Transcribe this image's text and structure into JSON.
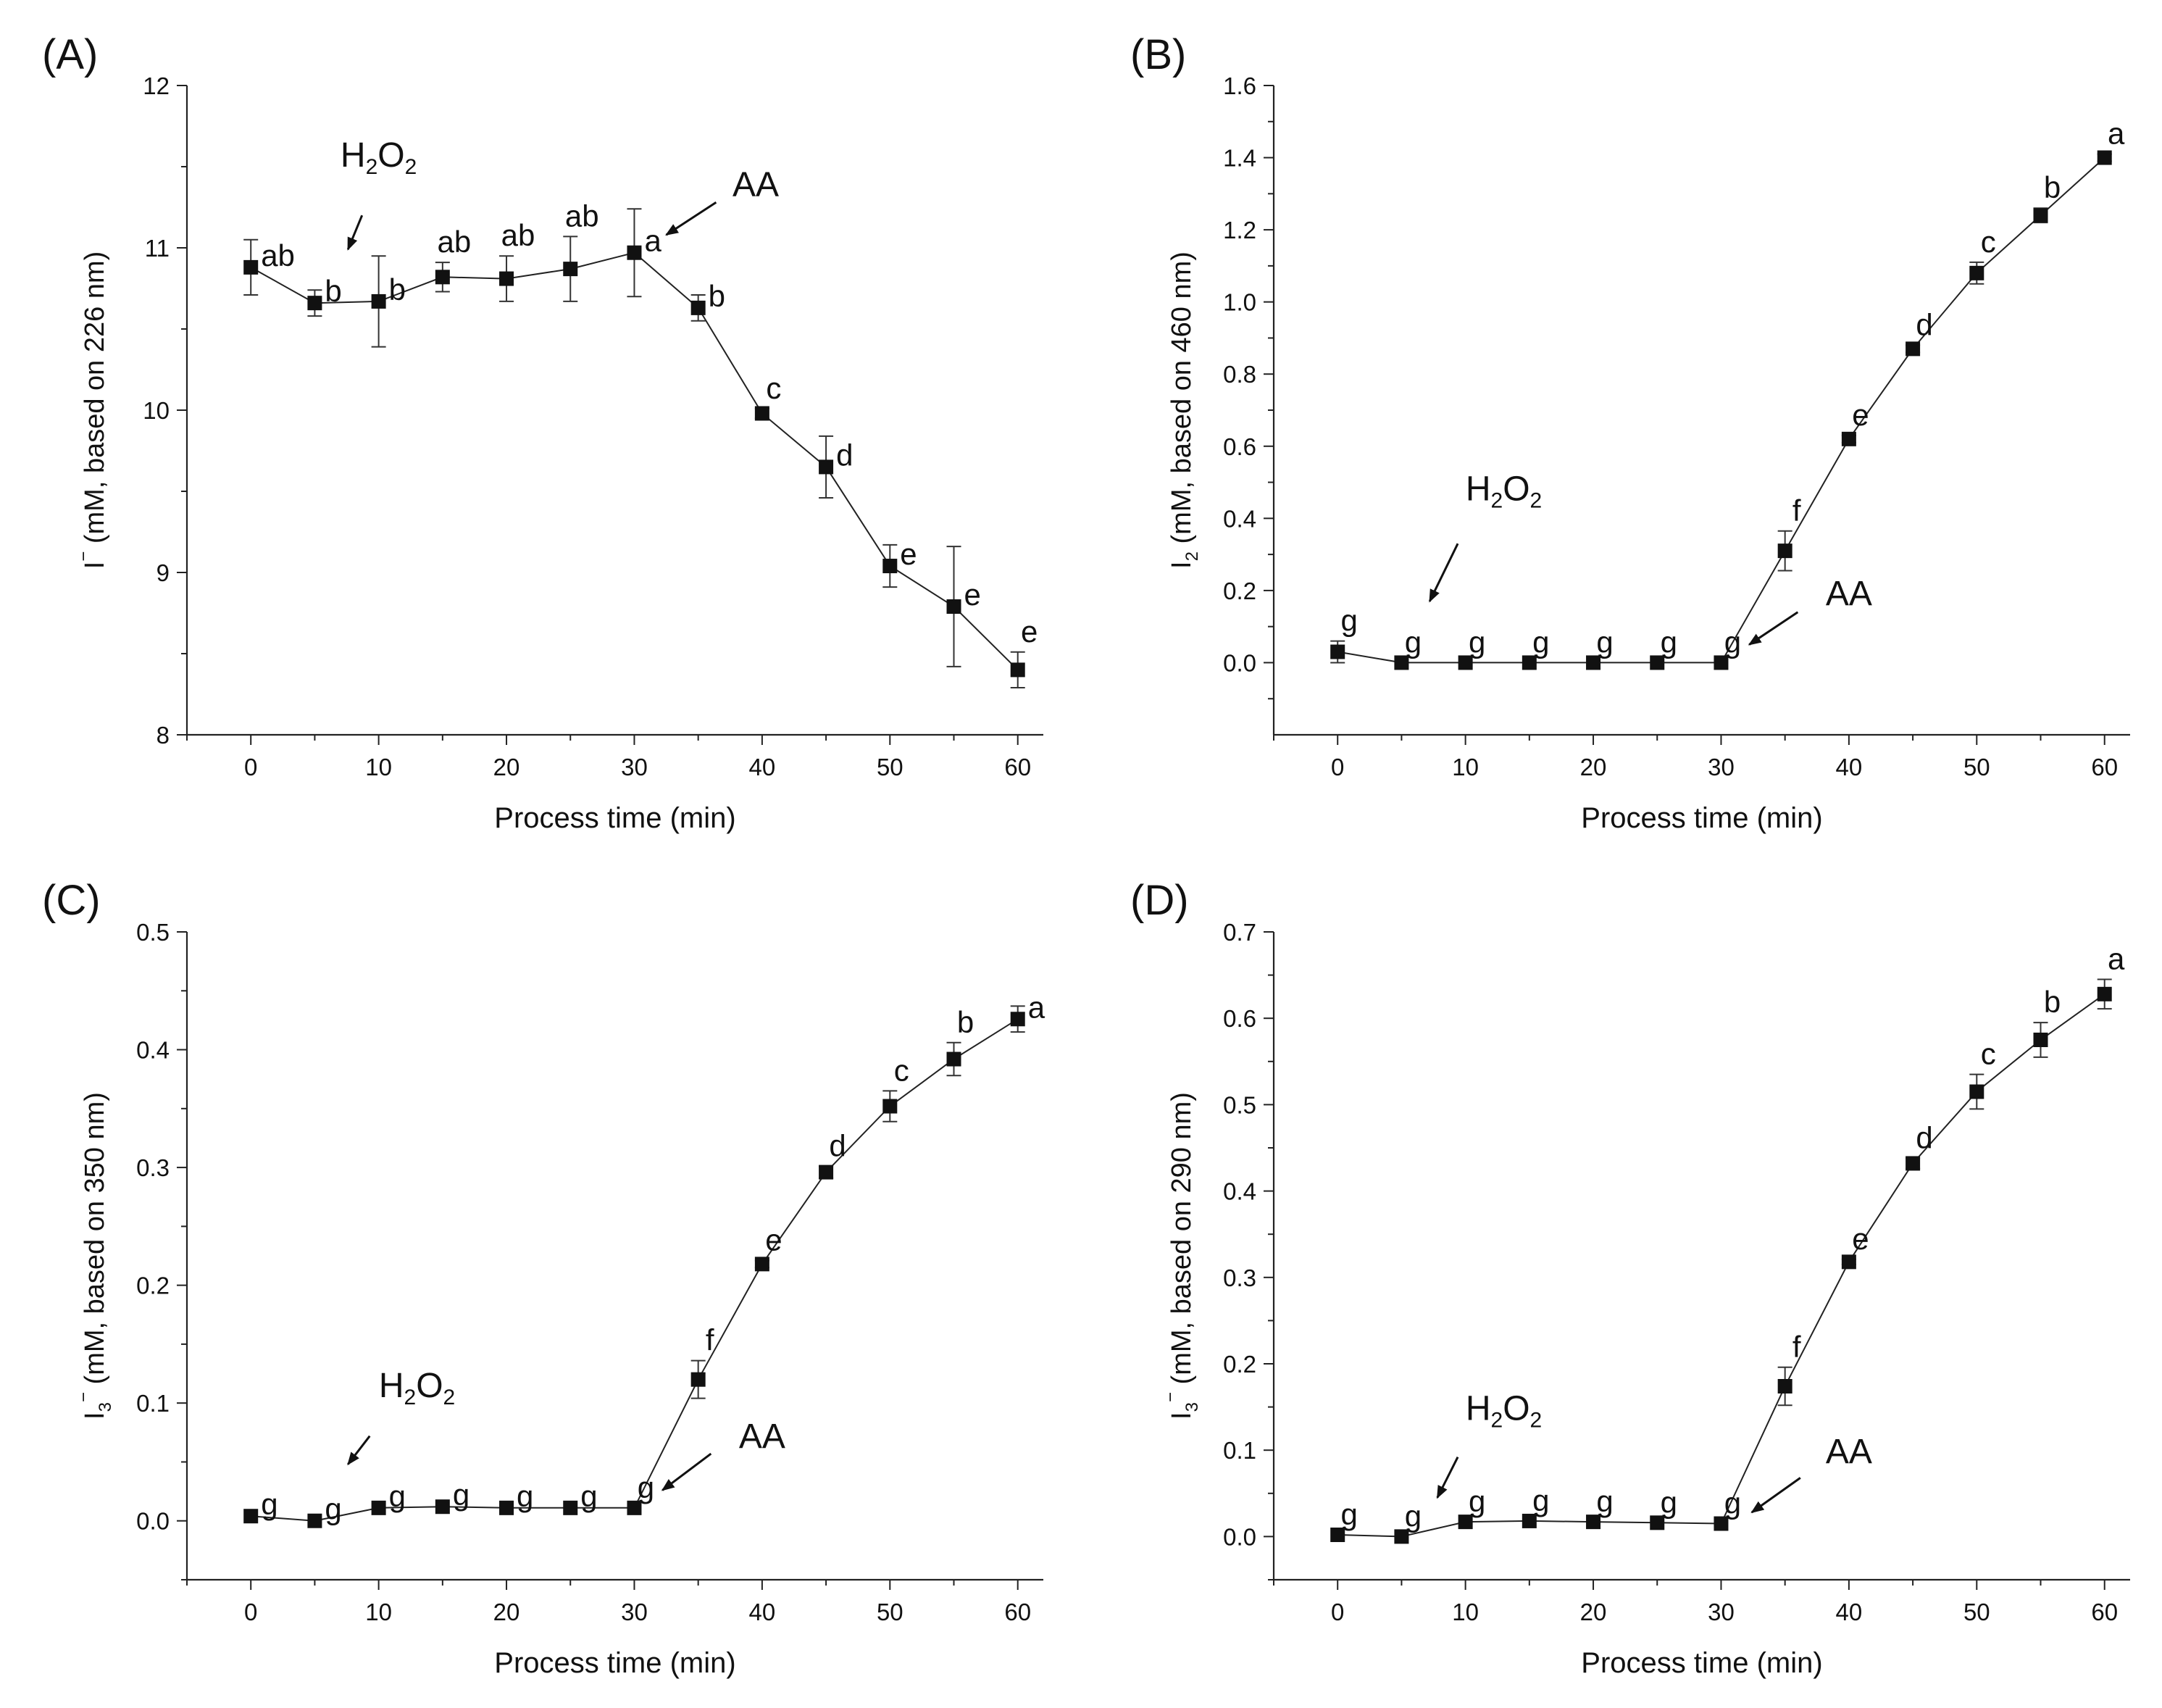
{
  "figure": {
    "panels": [
      "(A)",
      "(B)",
      "(C)",
      "(D)"
    ]
  },
  "chart_data": [
    {
      "type": "line",
      "panel": "(A)",
      "title": "",
      "xlabel": "Process time (min)",
      "ylabel": "I⁻ (mM, based on 226 nm)",
      "ylabel_main": "I",
      "ylabel_sup": "−",
      "ylabel_sub": "",
      "ylabel_rest": " (mM, based on 226 nm)",
      "xlim": [
        -5,
        62
      ],
      "ylim": [
        8,
        12
      ],
      "xticks": [
        0,
        10,
        20,
        30,
        40,
        50,
        60
      ],
      "yticks": [
        8,
        9,
        10,
        11,
        12
      ],
      "ytick_decimals": 0,
      "x": [
        0,
        5,
        10,
        15,
        20,
        25,
        30,
        35,
        40,
        45,
        50,
        55,
        60
      ],
      "y": [
        10.88,
        10.66,
        10.67,
        10.82,
        10.81,
        10.87,
        10.97,
        10.63,
        9.98,
        9.65,
        9.04,
        8.79,
        8.4
      ],
      "err": [
        0.17,
        0.08,
        0.28,
        0.09,
        0.14,
        0.2,
        0.27,
        0.08,
        0.03,
        0.19,
        0.13,
        0.37,
        0.11
      ],
      "labels": [
        "ab",
        "b",
        "b",
        "ab",
        "ab",
        "ab",
        "a",
        "b",
        "c",
        "d",
        "e",
        "e",
        "e"
      ],
      "label_pos": [
        "right",
        "right",
        "right",
        "above",
        "above",
        "above",
        "right",
        "right",
        "above",
        "right",
        "right",
        "right",
        "above"
      ],
      "annotations": [
        {
          "main": "H",
          "sub": "2",
          "main2": "O",
          "sub2": "2",
          "text_x": 10,
          "text_y": 11.5,
          "arrow_from": [
            8.7,
            11.2
          ],
          "arrow_to": [
            7.6,
            10.99
          ]
        },
        {
          "main": "AA",
          "sub": "",
          "main2": "",
          "sub2": "",
          "text_x": 39.5,
          "text_y": 11.32,
          "arrow_from": [
            36.4,
            11.28
          ],
          "arrow_to": [
            32.5,
            11.08
          ]
        }
      ]
    },
    {
      "type": "line",
      "panel": "(B)",
      "title": "",
      "xlabel": "Process time (min)",
      "ylabel": "I₂ (mM, based on 460 nm)",
      "ylabel_main": "I",
      "ylabel_sup": "",
      "ylabel_sub": "2",
      "ylabel_rest": " (mM, based on 460 nm)",
      "xlim": [
        -5,
        62
      ],
      "ylim": [
        -0.2,
        1.6
      ],
      "xticks": [
        0,
        10,
        20,
        30,
        40,
        50,
        60
      ],
      "yticks": [
        0.0,
        0.2,
        0.4,
        0.6,
        0.8,
        1.0,
        1.2,
        1.4,
        1.6
      ],
      "ytick_decimals": 1,
      "x": [
        0,
        5,
        10,
        15,
        20,
        25,
        30,
        35,
        40,
        45,
        50,
        55,
        60
      ],
      "y": [
        0.03,
        0.0,
        0.0,
        0.0,
        0.0,
        0.0,
        0.0,
        0.31,
        0.62,
        0.87,
        1.08,
        1.24,
        1.4
      ],
      "err": [
        0.03,
        0.0,
        0.0,
        0.0,
        0.0,
        0.0,
        0.0,
        0.055,
        0.01,
        0.01,
        0.03,
        0.02,
        0.01
      ],
      "labels": [
        "g",
        "g",
        "g",
        "g",
        "g",
        "g",
        "g",
        "f",
        "e",
        "d",
        "c",
        "b",
        "a"
      ],
      "label_pos": [
        "above",
        "above",
        "above",
        "above",
        "above",
        "above",
        "above",
        "above",
        "above",
        "above",
        "above",
        "above",
        "above"
      ],
      "annotations": [
        {
          "main": "H",
          "sub": "2",
          "main2": "O",
          "sub2": "2",
          "text_x": 13,
          "text_y": 0.45,
          "arrow_from": [
            9.4,
            0.33
          ],
          "arrow_to": [
            7.2,
            0.17
          ]
        },
        {
          "main": "AA",
          "sub": "",
          "main2": "",
          "sub2": "",
          "text_x": 40,
          "text_y": 0.16,
          "arrow_from": [
            36,
            0.14
          ],
          "arrow_to": [
            32.2,
            0.05
          ]
        }
      ]
    },
    {
      "type": "line",
      "panel": "(C)",
      "title": "",
      "xlabel": "Process time (min)",
      "ylabel": "I₃⁻ (mM, based on 350 nm)",
      "ylabel_main": "I",
      "ylabel_sup": "−",
      "ylabel_sub": "3",
      "ylabel_rest": " (mM, based on 350 nm)",
      "xlim": [
        -5,
        62
      ],
      "ylim": [
        -0.05,
        0.5
      ],
      "xticks": [
        0,
        10,
        20,
        30,
        40,
        50,
        60
      ],
      "yticks": [
        0.0,
        0.1,
        0.2,
        0.3,
        0.4,
        0.5
      ],
      "ytick_decimals": 1,
      "x": [
        0,
        5,
        10,
        15,
        20,
        25,
        30,
        35,
        40,
        45,
        50,
        55,
        60
      ],
      "y": [
        0.004,
        0.0,
        0.011,
        0.012,
        0.011,
        0.011,
        0.011,
        0.12,
        0.218,
        0.296,
        0.352,
        0.392,
        0.426
      ],
      "err": [
        0.0,
        0.0,
        0.0,
        0.0,
        0.0,
        0.0,
        0.0,
        0.016,
        0.003,
        0.005,
        0.013,
        0.014,
        0.011
      ],
      "labels": [
        "g",
        "g",
        "g",
        "g",
        "g",
        "g",
        "g",
        "f",
        "e",
        "d",
        "c",
        "b",
        "a"
      ],
      "label_pos": [
        "right",
        "right",
        "right",
        "right",
        "right",
        "right",
        "above",
        "above",
        "above",
        "above",
        "above",
        "above",
        "right"
      ],
      "annotations": [
        {
          "main": "H",
          "sub": "2",
          "main2": "O",
          "sub2": "2",
          "text_x": 13,
          "text_y": 0.105,
          "arrow_from": [
            9.3,
            0.072
          ],
          "arrow_to": [
            7.6,
            0.048
          ]
        },
        {
          "main": "AA",
          "sub": "",
          "main2": "",
          "sub2": "",
          "text_x": 40,
          "text_y": 0.062,
          "arrow_from": [
            36,
            0.057
          ],
          "arrow_to": [
            32.2,
            0.026
          ]
        }
      ]
    },
    {
      "type": "line",
      "panel": "(D)",
      "title": "",
      "xlabel": "Process time (min)",
      "ylabel": "I₃⁻ (mM, based on 290 nm)",
      "ylabel_main": "I",
      "ylabel_sup": "−",
      "ylabel_sub": "3",
      "ylabel_rest": " (mM, based on 290 nm)",
      "xlim": [
        -5,
        62
      ],
      "ylim": [
        -0.05,
        0.7
      ],
      "xticks": [
        0,
        10,
        20,
        30,
        40,
        50,
        60
      ],
      "yticks": [
        0.0,
        0.1,
        0.2,
        0.3,
        0.4,
        0.5,
        0.6,
        0.7
      ],
      "ytick_decimals": 1,
      "x": [
        0,
        5,
        10,
        15,
        20,
        25,
        30,
        35,
        40,
        45,
        50,
        55,
        60
      ],
      "y": [
        0.002,
        0.0,
        0.017,
        0.018,
        0.017,
        0.016,
        0.015,
        0.174,
        0.318,
        0.432,
        0.515,
        0.575,
        0.628
      ],
      "err": [
        0.0,
        0.0,
        0.0,
        0.0,
        0.0,
        0.0,
        0.0,
        0.022,
        0.003,
        0.006,
        0.02,
        0.02,
        0.017
      ],
      "labels": [
        "g",
        "g",
        "g",
        "g",
        "g",
        "g",
        "g",
        "f",
        "e",
        "d",
        "c",
        "b",
        "a"
      ],
      "label_pos": [
        "above",
        "above",
        "above",
        "above",
        "above",
        "above",
        "above",
        "above",
        "above",
        "above",
        "above",
        "above",
        "above"
      ],
      "annotations": [
        {
          "main": "H",
          "sub": "2",
          "main2": "O",
          "sub2": "2",
          "text_x": 13,
          "text_y": 0.135,
          "arrow_from": [
            9.4,
            0.092
          ],
          "arrow_to": [
            7.8,
            0.045
          ]
        },
        {
          "main": "AA",
          "sub": "",
          "main2": "",
          "sub2": "",
          "text_x": 40,
          "text_y": 0.085,
          "arrow_from": [
            36.2,
            0.068
          ],
          "arrow_to": [
            32.4,
            0.028
          ]
        }
      ]
    }
  ]
}
